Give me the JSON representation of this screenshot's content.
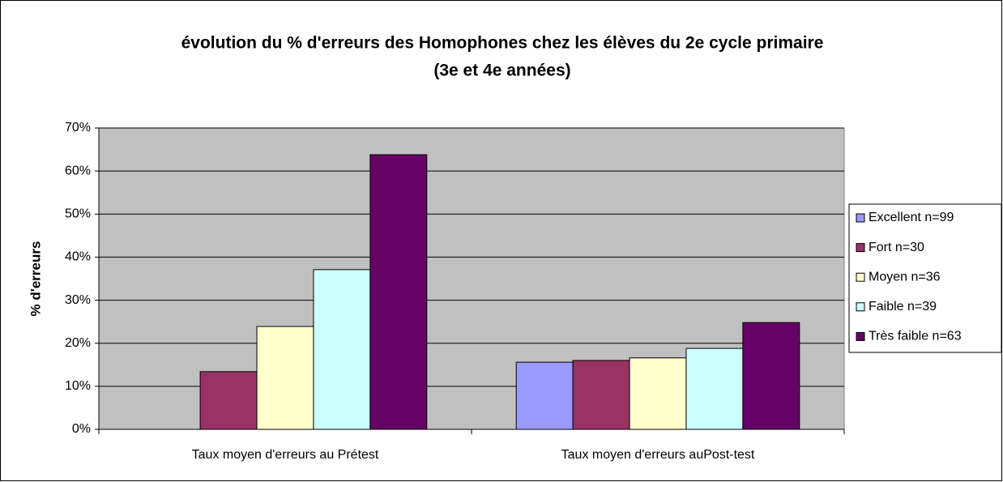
{
  "chart_data": {
    "type": "bar",
    "title": [
      "évolution du % d'erreurs des Homophones chez les élèves du 2e cycle primaire",
      "(3e et 4e années)"
    ],
    "y_label": "% d'erreurs",
    "categories": [
      "Taux moyen d'erreurs au Prétest",
      "Taux moyen d'erreurs auPost-test"
    ],
    "series": [
      {
        "name": "Excellent n=99",
        "color": "#9999ff",
        "values": [
          0,
          15.6
        ]
      },
      {
        "name": "Fort n=30",
        "color": "#993366",
        "values": [
          13.4,
          16.0
        ]
      },
      {
        "name": "Moyen n=36",
        "color": "#ffffcc",
        "values": [
          23.9,
          16.6
        ]
      },
      {
        "name": "Faible n=39",
        "color": "#ccffff",
        "values": [
          37.1,
          18.8
        ]
      },
      {
        "name": "Très faible n=63",
        "color": "#660066",
        "values": [
          63.8,
          24.8
        ]
      }
    ],
    "ylim": [
      0,
      70
    ],
    "yticks": [
      {
        "value": 0,
        "label": "0%"
      },
      {
        "value": 10,
        "label": "10%"
      },
      {
        "value": 20,
        "label": "20%"
      },
      {
        "value": 30,
        "label": "30%"
      },
      {
        "value": 40,
        "label": "40%"
      },
      {
        "value": 50,
        "label": "50%"
      },
      {
        "value": 60,
        "label": "60%"
      },
      {
        "value": 70,
        "label": "70%"
      }
    ],
    "grid": true,
    "legend": "right",
    "plot_background": "#c0c0c0"
  }
}
